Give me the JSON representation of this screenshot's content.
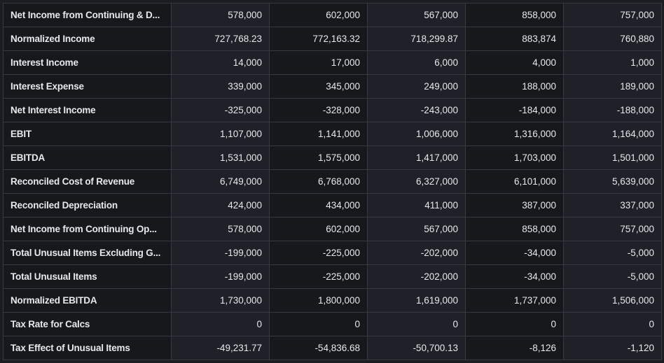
{
  "rows": [
    {
      "label": "Net Income from Continuing & D...",
      "values": [
        "578,000",
        "602,000",
        "567,000",
        "858,000",
        "757,000"
      ]
    },
    {
      "label": "Normalized Income",
      "values": [
        "727,768.23",
        "772,163.32",
        "718,299.87",
        "883,874",
        "760,880"
      ]
    },
    {
      "label": "Interest Income",
      "values": [
        "14,000",
        "17,000",
        "6,000",
        "4,000",
        "1,000"
      ]
    },
    {
      "label": "Interest Expense",
      "values": [
        "339,000",
        "345,000",
        "249,000",
        "188,000",
        "189,000"
      ]
    },
    {
      "label": "Net Interest Income",
      "values": [
        "-325,000",
        "-328,000",
        "-243,000",
        "-184,000",
        "-188,000"
      ]
    },
    {
      "label": "EBIT",
      "values": [
        "1,107,000",
        "1,141,000",
        "1,006,000",
        "1,316,000",
        "1,164,000"
      ]
    },
    {
      "label": "EBITDA",
      "values": [
        "1,531,000",
        "1,575,000",
        "1,417,000",
        "1,703,000",
        "1,501,000"
      ]
    },
    {
      "label": "Reconciled Cost of Revenue",
      "values": [
        "6,749,000",
        "6,768,000",
        "6,327,000",
        "6,101,000",
        "5,639,000"
      ]
    },
    {
      "label": "Reconciled Depreciation",
      "values": [
        "424,000",
        "434,000",
        "411,000",
        "387,000",
        "337,000"
      ]
    },
    {
      "label": "Net Income from Continuing Op...",
      "values": [
        "578,000",
        "602,000",
        "567,000",
        "858,000",
        "757,000"
      ]
    },
    {
      "label": "Total Unusual Items Excluding G...",
      "values": [
        "-199,000",
        "-225,000",
        "-202,000",
        "-34,000",
        "-5,000"
      ]
    },
    {
      "label": "Total Unusual Items",
      "values": [
        "-199,000",
        "-225,000",
        "-202,000",
        "-34,000",
        "-5,000"
      ]
    },
    {
      "label": "Normalized EBITDA",
      "values": [
        "1,730,000",
        "1,800,000",
        "1,619,000",
        "1,737,000",
        "1,506,000"
      ]
    },
    {
      "label": "Tax Rate for Calcs",
      "values": [
        "0",
        "0",
        "0",
        "0",
        "0"
      ]
    },
    {
      "label": "Tax Effect of Unusual Items",
      "values": [
        "-49,231.77",
        "-54,836.68",
        "-50,700.13",
        "-8,126",
        "-1,120"
      ]
    }
  ]
}
